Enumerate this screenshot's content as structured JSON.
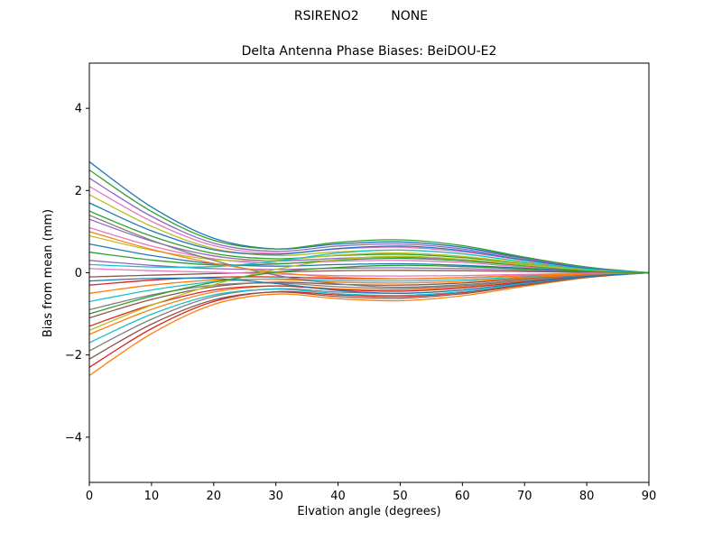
{
  "header": {
    "suptitle": "RSIRENO2        NONE",
    "title": "Delta Antenna Phase Biases: BeiDOU-E2"
  },
  "chart_data": {
    "type": "line",
    "suptitle": "RSIRENO2        NONE",
    "title": "Delta Antenna Phase Biases: BeiDOU-E2",
    "xlabel": "Elvation angle (degrees)",
    "ylabel": "Bias from mean (mm)",
    "xlim": [
      0,
      90
    ],
    "ylim": [
      -5.1,
      5.1
    ],
    "grid": false,
    "legend": "none",
    "x_ticks": [
      0,
      10,
      20,
      30,
      40,
      50,
      60,
      70,
      80,
      90
    ],
    "x_tick_labels": [
      "0",
      "10",
      "20",
      "30",
      "40",
      "50",
      "60",
      "70",
      "80",
      "90"
    ],
    "y_ticks": [
      -4,
      -2,
      0,
      2,
      4
    ],
    "y_tick_labels": [
      "−4",
      "−2",
      "0",
      "2",
      "4"
    ],
    "x": [
      0,
      10,
      20,
      30,
      40,
      50,
      60,
      70,
      80,
      90
    ],
    "colors": [
      "#1f77b4",
      "#ff7f0e",
      "#2ca02c",
      "#d62728",
      "#9467bd",
      "#8c564b",
      "#e377c2",
      "#7f7f7f",
      "#bcbd22",
      "#17becf"
    ],
    "series": [
      {
        "name": "line-01",
        "values": [
          2.7,
          1.6,
          0.84,
          0.58,
          0.7,
          0.75,
          0.62,
          0.36,
          0.13,
          0
        ]
      },
      {
        "name": "line-02",
        "values": [
          -2.5,
          -1.48,
          -0.77,
          -0.52,
          -0.63,
          -0.68,
          -0.56,
          -0.33,
          -0.12,
          0
        ]
      },
      {
        "name": "line-03",
        "values": [
          2.5,
          1.49,
          0.79,
          0.58,
          0.74,
          0.8,
          0.66,
          0.38,
          0.14,
          0
        ]
      },
      {
        "name": "line-04",
        "values": [
          -2.3,
          -1.36,
          -0.7,
          -0.46,
          -0.54,
          -0.58,
          -0.48,
          -0.28,
          -0.1,
          0
        ]
      },
      {
        "name": "line-05",
        "values": [
          2.3,
          1.37,
          0.72,
          0.52,
          0.65,
          0.7,
          0.58,
          0.34,
          0.12,
          0
        ]
      },
      {
        "name": "line-06",
        "values": [
          -2.1,
          -1.25,
          -0.66,
          -0.47,
          -0.58,
          -0.62,
          -0.51,
          -0.3,
          -0.11,
          0
        ]
      },
      {
        "name": "line-07",
        "values": [
          2.1,
          1.25,
          0.66,
          0.47,
          0.58,
          0.62,
          0.51,
          0.3,
          0.11,
          0
        ]
      },
      {
        "name": "line-08",
        "values": [
          -1.9,
          -1.13,
          -0.58,
          -0.39,
          -0.47,
          -0.5,
          -0.42,
          -0.24,
          -0.09,
          0
        ]
      },
      {
        "name": "line-09",
        "values": [
          1.9,
          1.13,
          0.59,
          0.42,
          0.51,
          0.55,
          0.46,
          0.26,
          0.09,
          0
        ]
      },
      {
        "name": "line-10",
        "values": [
          -1.7,
          -1.01,
          -0.54,
          -0.4,
          -0.51,
          -0.55,
          -0.46,
          -0.26,
          -0.09,
          0
        ]
      },
      {
        "name": "line-11",
        "values": [
          1.7,
          1.02,
          0.56,
          0.45,
          0.59,
          0.65,
          0.54,
          0.31,
          0.11,
          0
        ]
      },
      {
        "name": "line-12",
        "values": [
          -1.5,
          -0.89,
          -0.47,
          -0.32,
          -0.39,
          -0.42,
          -0.35,
          -0.2,
          -0.07,
          0
        ]
      },
      {
        "name": "line-13",
        "values": [
          1.5,
          0.89,
          0.47,
          0.34,
          0.42,
          0.45,
          0.37,
          0.22,
          0.08,
          0
        ]
      },
      {
        "name": "line-14",
        "values": [
          -1.3,
          -0.78,
          -0.42,
          -0.32,
          -0.41,
          -0.45,
          -0.37,
          -0.22,
          -0.08,
          0
        ]
      },
      {
        "name": "line-15",
        "values": [
          1.3,
          0.77,
          0.41,
          0.29,
          0.35,
          0.38,
          0.32,
          0.18,
          0.06,
          0
        ]
      },
      {
        "name": "line-16",
        "values": [
          -1.1,
          -0.65,
          -0.34,
          -0.23,
          -0.28,
          -0.3,
          -0.25,
          -0.14,
          -0.05,
          0
        ]
      },
      {
        "name": "line-17",
        "values": [
          1.1,
          0.65,
          0.34,
          0.23,
          0.28,
          0.3,
          0.25,
          0.14,
          0.05,
          0
        ]
      },
      {
        "name": "line-18",
        "values": [
          -0.9,
          -0.54,
          -0.3,
          -0.25,
          -0.34,
          -0.38,
          -0.32,
          -0.18,
          -0.06,
          0
        ]
      },
      {
        "name": "line-19",
        "values": [
          0.9,
          0.55,
          0.32,
          0.3,
          0.43,
          0.48,
          0.4,
          0.23,
          0.08,
          0
        ]
      },
      {
        "name": "line-20",
        "values": [
          -0.7,
          -0.42,
          -0.22,
          -0.15,
          -0.19,
          -0.2,
          -0.17,
          -0.1,
          -0.03,
          0
        ]
      },
      {
        "name": "line-21",
        "values": [
          0.7,
          0.42,
          0.22,
          0.16,
          0.2,
          0.22,
          0.18,
          0.11,
          0.04,
          0
        ]
      },
      {
        "name": "line-22",
        "values": [
          -0.5,
          -0.3,
          -0.18,
          -0.16,
          -0.23,
          -0.25,
          -0.21,
          -0.12,
          -0.04,
          0
        ]
      },
      {
        "name": "line-23",
        "values": [
          0.5,
          0.31,
          0.19,
          0.21,
          0.31,
          0.35,
          0.29,
          0.17,
          0.06,
          0
        ]
      },
      {
        "name": "line-24",
        "values": [
          -0.3,
          -0.18,
          -0.11,
          -0.1,
          -0.14,
          -0.15,
          -0.12,
          -0.07,
          -0.03,
          0
        ]
      },
      {
        "name": "line-25",
        "values": [
          0.3,
          0.18,
          0.1,
          0.08,
          0.11,
          0.12,
          0.1,
          0.06,
          0.02,
          0
        ]
      },
      {
        "name": "line-26",
        "values": [
          -0.1,
          -0.06,
          -0.02,
          0.02,
          0.05,
          0.06,
          0.05,
          0.03,
          0.01,
          0
        ]
      },
      {
        "name": "line-27",
        "values": [
          0.1,
          0.05,
          0.01,
          -0.03,
          -0.07,
          -0.08,
          -0.07,
          -0.04,
          -0.01,
          0
        ]
      },
      {
        "name": "line-28",
        "values": [
          1.4,
          0.79,
          0.3,
          -0.06,
          -0.27,
          -0.35,
          -0.29,
          -0.17,
          -0.06,
          0
        ]
      },
      {
        "name": "line-29",
        "values": [
          -1.4,
          -0.79,
          -0.29,
          0.08,
          0.32,
          0.4,
          0.33,
          0.19,
          0.07,
          0
        ]
      },
      {
        "name": "line-30",
        "values": [
          0.2,
          0.14,
          0.15,
          0.28,
          0.48,
          0.55,
          0.46,
          0.26,
          0.09,
          0
        ]
      },
      {
        "name": "line-31",
        "values": [
          -0.2,
          -0.14,
          -0.14,
          -0.26,
          -0.43,
          -0.5,
          -0.42,
          -0.24,
          -0.09,
          0
        ]
      },
      {
        "name": "line-32",
        "values": [
          1.0,
          0.57,
          0.23,
          0.01,
          -0.11,
          -0.15,
          -0.12,
          -0.07,
          -0.03,
          0
        ]
      },
      {
        "name": "line-33",
        "values": [
          -1.0,
          -0.57,
          -0.23,
          0.01,
          0.13,
          0.18,
          0.15,
          0.09,
          0.03,
          0
        ]
      }
    ]
  }
}
